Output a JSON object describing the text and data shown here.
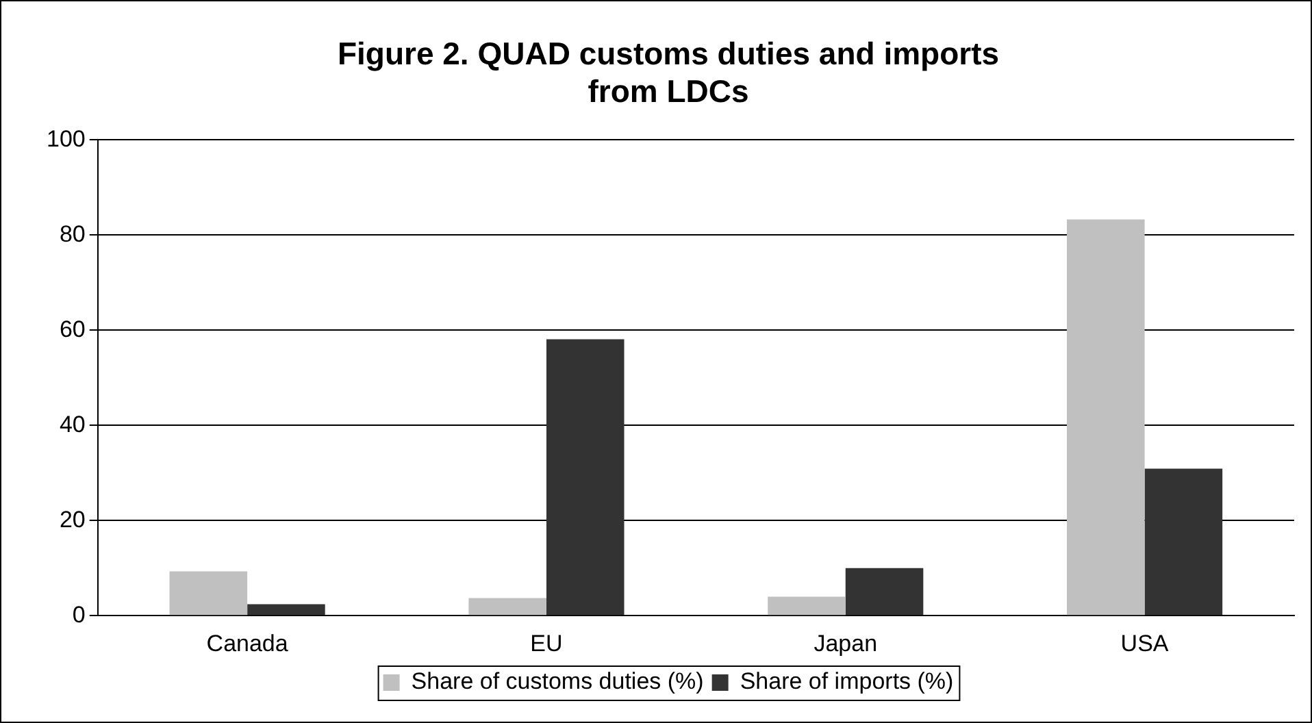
{
  "chart_data": {
    "type": "bar",
    "title": [
      "Figure 2. QUAD customs duties and imports",
      "from LDCs"
    ],
    "categories": [
      "Canada",
      "EU",
      "Japan",
      "USA"
    ],
    "series": [
      {
        "name": "Share of customs duties (%)",
        "color": "#c0c0c0",
        "values": [
          9.3,
          3.7,
          4,
          83.3
        ]
      },
      {
        "name": "Share of imports (%)",
        "color": "#333333",
        "values": [
          2.4,
          58.1,
          10,
          30.9
        ]
      }
    ],
    "ylim": [
      0,
      100
    ],
    "yticks": [
      0,
      20,
      40,
      60,
      80,
      100
    ],
    "grid": "y",
    "legend": "bottom"
  }
}
